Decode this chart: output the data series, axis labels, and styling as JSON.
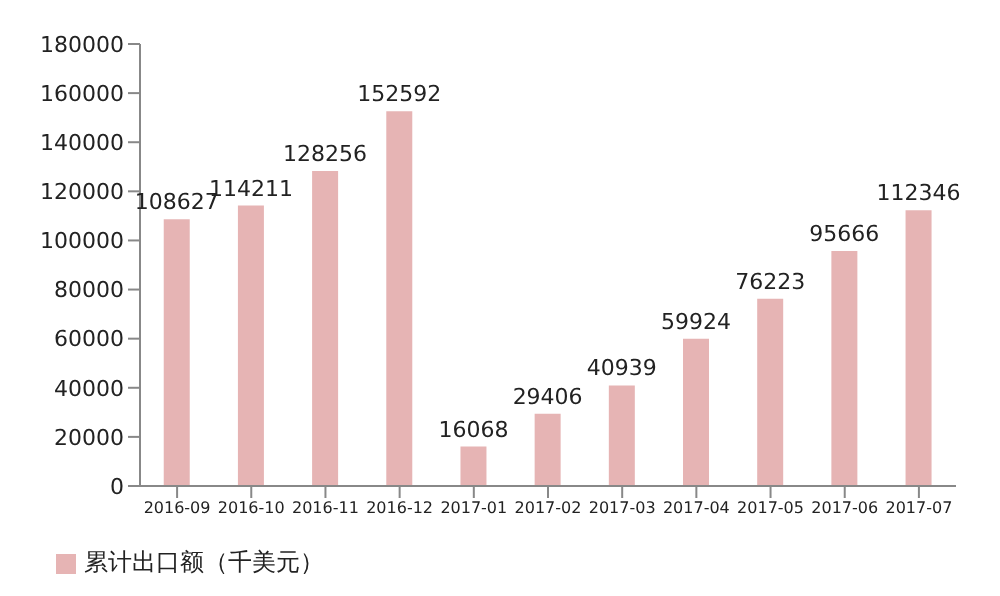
{
  "chart_data": {
    "type": "bar",
    "categories": [
      "2016-09",
      "2016-10",
      "2016-11",
      "2016-12",
      "2017-01",
      "2017-02",
      "2017-03",
      "2017-04",
      "2017-05",
      "2017-06",
      "2017-07"
    ],
    "series": [
      {
        "name": "累计出口额（千美元）",
        "color": "#e6b4b4",
        "values": [
          108627,
          114211,
          128256,
          152592,
          16068,
          29406,
          40939,
          59924,
          76223,
          95666,
          112346
        ]
      }
    ],
    "ylim": [
      0,
      180000
    ],
    "yticks": [
      0,
      20000,
      40000,
      60000,
      80000,
      100000,
      120000,
      140000,
      160000,
      180000
    ],
    "grid": false,
    "legend": "bottom left",
    "data_labels": true
  }
}
